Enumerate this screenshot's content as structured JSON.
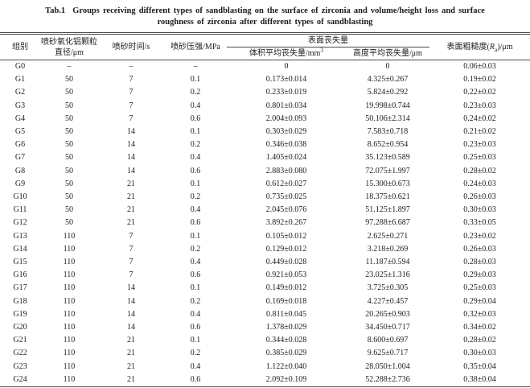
{
  "page": {
    "background": "#ffffff",
    "text_color": "#1c1c1c",
    "rule_color": "#4a4a4a"
  },
  "caption": {
    "label": "Tab.1",
    "line1": "Groups receiving different types of sandblasting on the surface of zirconia and volume/height loss and surface",
    "line2": "roughness of zirconia after different types of sandblasting"
  },
  "table": {
    "headers": {
      "group": "组别",
      "particle_line1": "喷砂氧化铝颗粒",
      "particle_line2": "直径/μm",
      "time": "喷砂时间/s",
      "pressure": "喷砂压强/MPa",
      "surface_loss_group": "表面丧失量",
      "volume_loss_prefix": "体积平均丧失量/mm",
      "volume_loss_sup": "3",
      "height_loss": "高度平均丧失量/μm",
      "roughness_prefix": "表面粗糙度(",
      "roughness_symbol": "R",
      "roughness_subscript": "a",
      "roughness_suffix": ")/μm"
    },
    "column_keys": [
      "group",
      "particle-diameter",
      "time",
      "pressure",
      "volume-loss",
      "height-loss",
      "roughness"
    ],
    "rows": [
      [
        "G0",
        "–",
        "–",
        "–",
        "0",
        "0",
        "0.06±0.03"
      ],
      [
        "G1",
        "50",
        "7",
        "0.1",
        "0.173±0.014",
        "4.325±0.267",
        "0.19±0.02"
      ],
      [
        "G2",
        "50",
        "7",
        "0.2",
        "0.233±0.019",
        "5.824±0.292",
        "0.22±0.02"
      ],
      [
        "G3",
        "50",
        "7",
        "0.4",
        "0.801±0.034",
        "19.998±0.744",
        "0.23±0.03"
      ],
      [
        "G4",
        "50",
        "7",
        "0.6",
        "2.004±0.093",
        "50.106±2.314",
        "0.24±0.02"
      ],
      [
        "G5",
        "50",
        "14",
        "0.1",
        "0.303±0.029",
        "7.583±0.718",
        "0.21±0.02"
      ],
      [
        "G6",
        "50",
        "14",
        "0.2",
        "0.346±0.038",
        "8.652±0.954",
        "0.23±0.03"
      ],
      [
        "G7",
        "50",
        "14",
        "0.4",
        "1.405±0.024",
        "35.123±0.589",
        "0.25±0.03"
      ],
      [
        "G8",
        "50",
        "14",
        "0.6",
        "2.883±0.080",
        "72.075±1.997",
        "0.28±0.02"
      ],
      [
        "G9",
        "50",
        "21",
        "0.1",
        "0.612±0.027",
        "15.300±0.673",
        "0.24±0.03"
      ],
      [
        "G10",
        "50",
        "21",
        "0.2",
        "0.735±0.025",
        "18.375±0.621",
        "0.26±0.03"
      ],
      [
        "G11",
        "50",
        "21",
        "0.4",
        "2.045±0.076",
        "51.125±1.897",
        "0.30±0.03"
      ],
      [
        "G12",
        "50",
        "21",
        "0.6",
        "3.892±0.267",
        "97.288±6.687",
        "0.33±0.05"
      ],
      [
        "G13",
        "110",
        "7",
        "0.1",
        "0.105±0.012",
        "2.625±0.271",
        "0.23±0.02"
      ],
      [
        "G14",
        "110",
        "7",
        "0.2",
        "0.129±0.012",
        "3.218±0.269",
        "0.26±0.03"
      ],
      [
        "G15",
        "110",
        "7",
        "0.4",
        "0.449±0.028",
        "11.187±0.594",
        "0.28±0.03"
      ],
      [
        "G16",
        "110",
        "7",
        "0.6",
        "0.921±0.053",
        "23.025±1.316",
        "0.29±0.03"
      ],
      [
        "G17",
        "110",
        "14",
        "0.1",
        "0.149±0.012",
        "3.725±0.305",
        "0.25±0.03"
      ],
      [
        "G18",
        "110",
        "14",
        "0.2",
        "0.169±0.018",
        "4.227±0.457",
        "0.29±0.04"
      ],
      [
        "G19",
        "110",
        "14",
        "0.4",
        "0.811±0.045",
        "20.265±0.903",
        "0.32±0.03"
      ],
      [
        "G20",
        "110",
        "14",
        "0.6",
        "1.378±0.029",
        "34.450±0.717",
        "0.34±0.02"
      ],
      [
        "G21",
        "110",
        "21",
        "0.1",
        "0.344±0.028",
        "8.600±0.697",
        "0.28±0.02"
      ],
      [
        "G22",
        "110",
        "21",
        "0.2",
        "0.385±0.029",
        "9.625±0.717",
        "0.30±0.03"
      ],
      [
        "G23",
        "110",
        "21",
        "0.4",
        "1.122±0.040",
        "28.050±1.004",
        "0.35±0.04"
      ],
      [
        "G24",
        "110",
        "21",
        "0.6",
        "2.092±0.109",
        "52.288±2.736",
        "0.38±0.04"
      ]
    ]
  }
}
